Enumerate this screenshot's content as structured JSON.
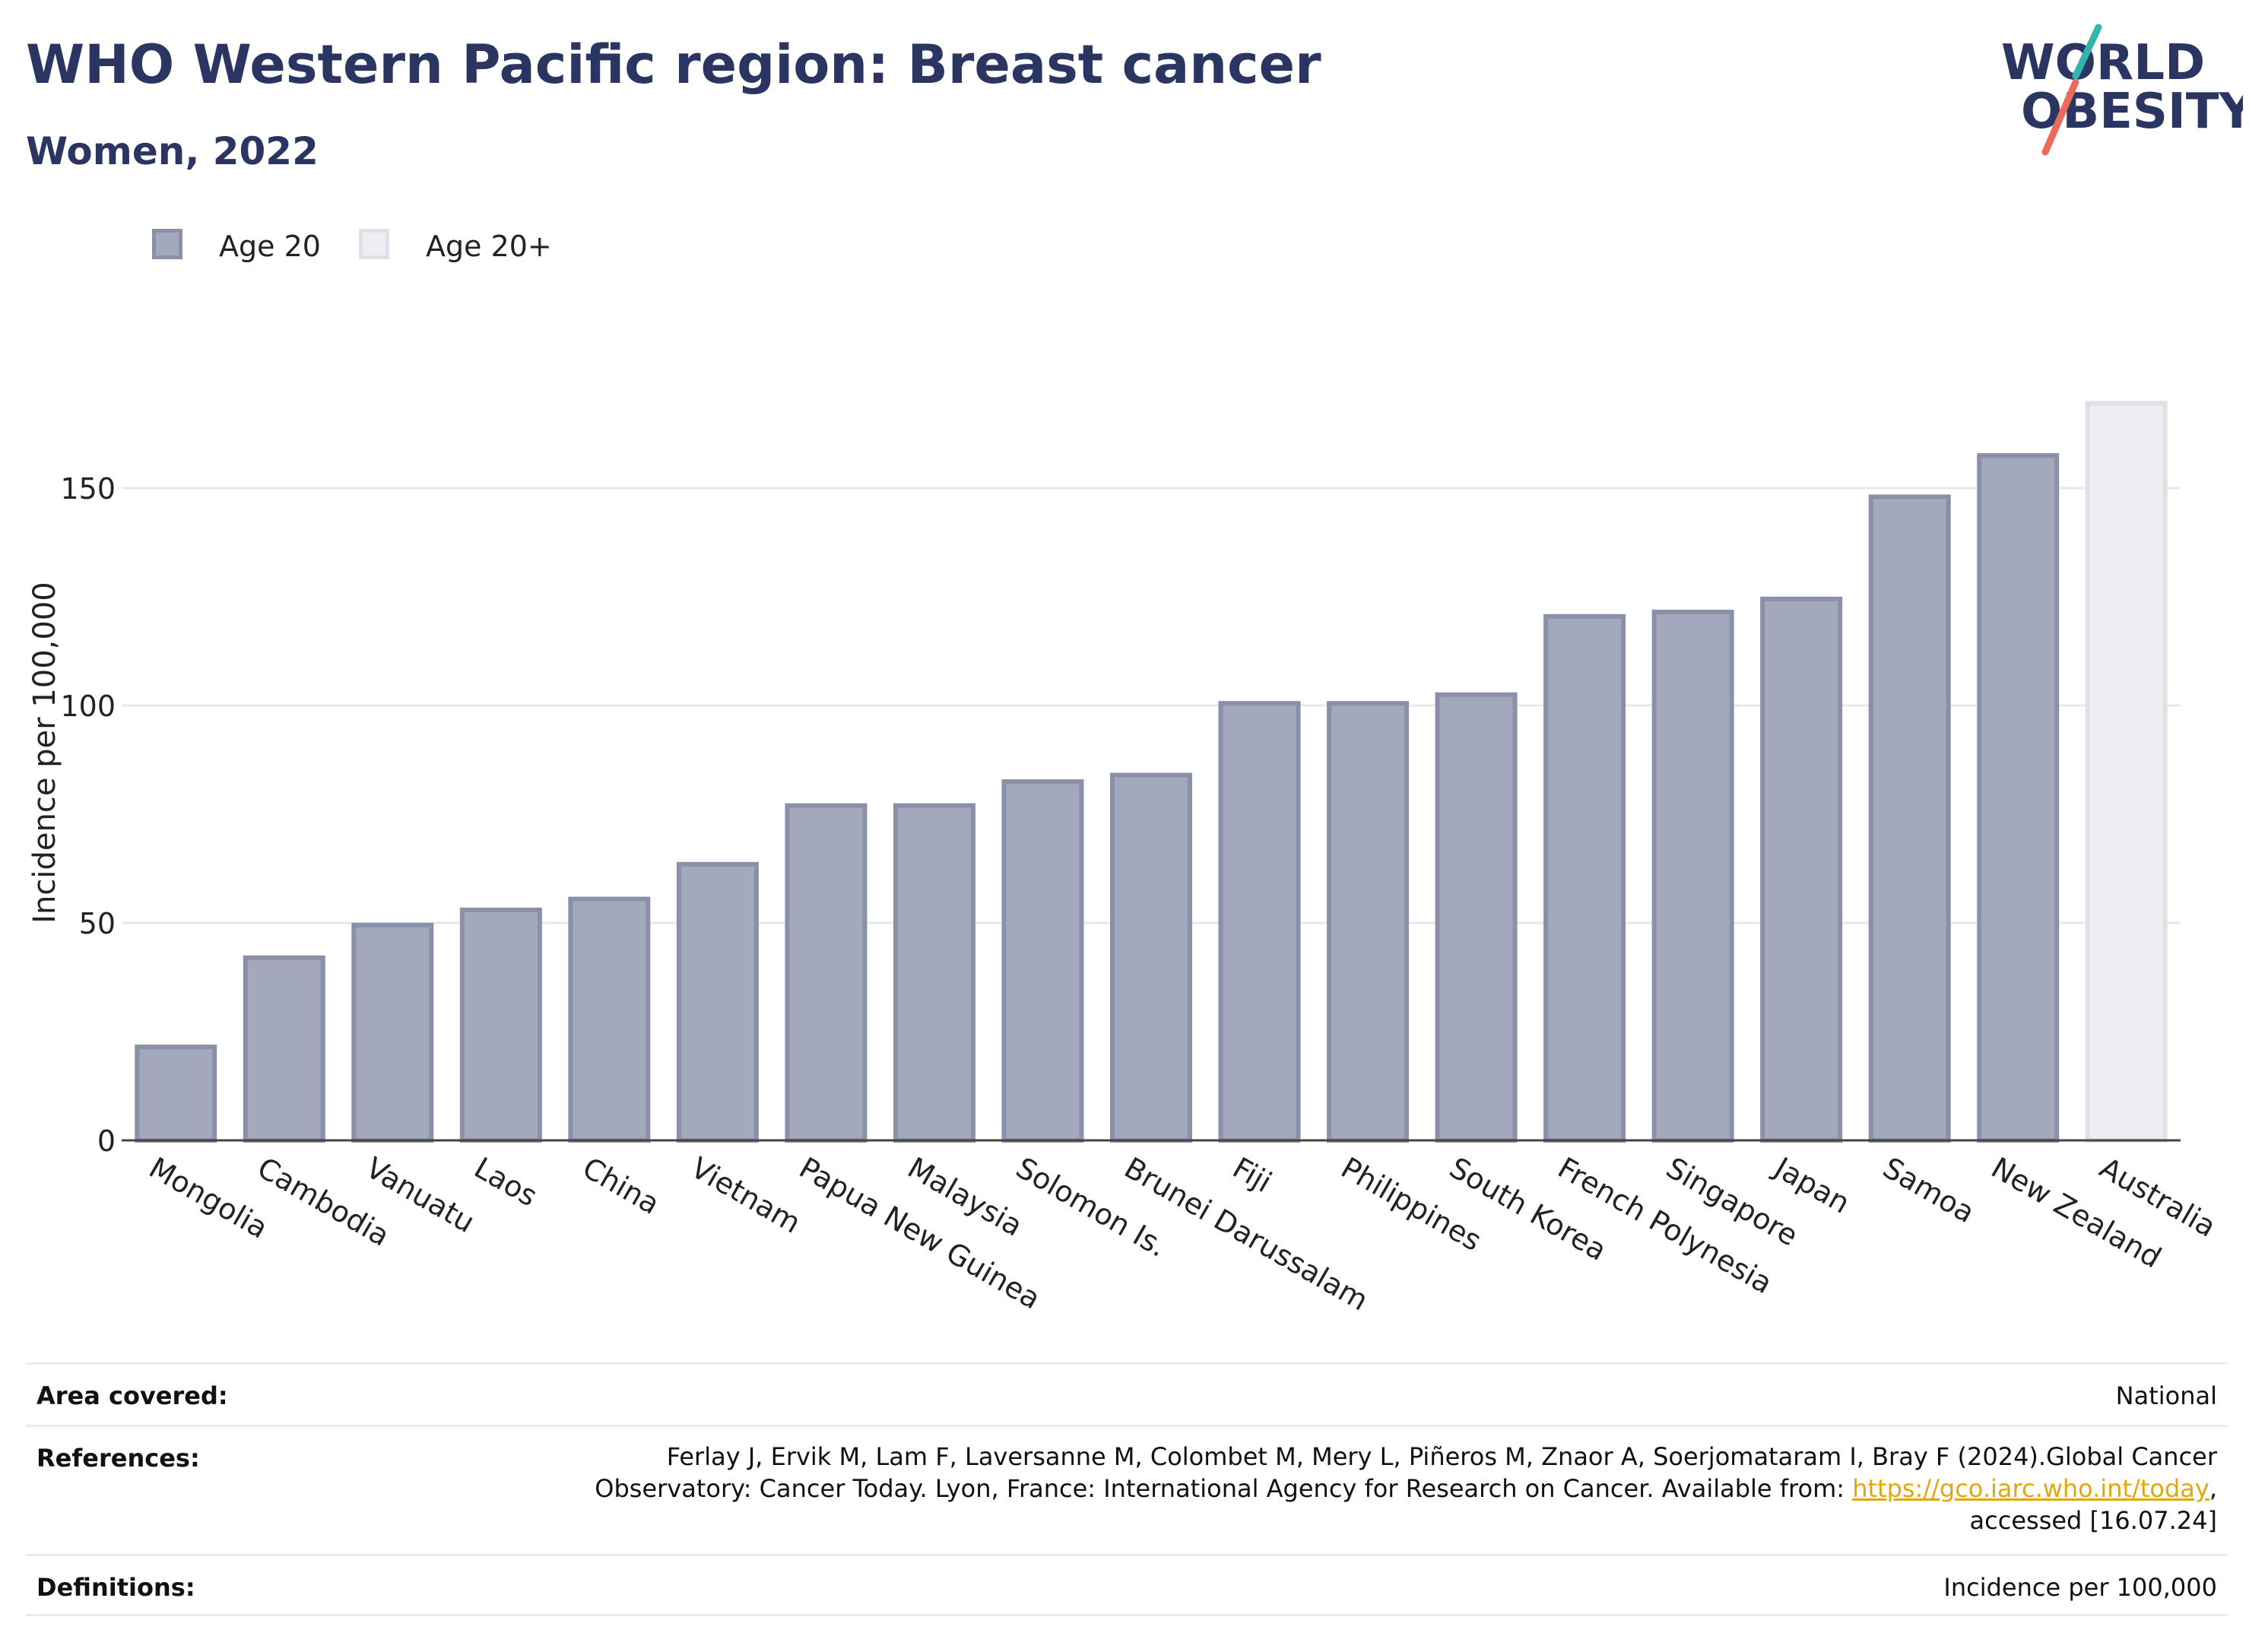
{
  "header": {
    "title": "WHO Western Pacific region: Breast cancer",
    "subtitle": "Women, 2022",
    "logo_line1": "WORLD",
    "logo_line2": "OBESITY"
  },
  "legend": [
    {
      "label": "Age 20",
      "color": "#a3a8bc",
      "border": "#8a90a8"
    },
    {
      "label": "Age 20+",
      "color": "#eceef2",
      "border": "#dfe1e8"
    }
  ],
  "chart_data": {
    "type": "bar",
    "ylabel": "Incidence per 100,000",
    "ylim": [
      0,
      175
    ],
    "yticks": [
      0,
      50,
      100,
      150
    ],
    "grid": true,
    "categories": [
      "Mongolia",
      "Cambodia",
      "Vanuatu",
      "Laos",
      "China",
      "Vietnam",
      "Papua New Guinea",
      "Malaysia",
      "Solomon Is.",
      "Brunei Darussalam",
      "Fiji",
      "Philippines",
      "South Korea",
      "French Polynesia",
      "Singapore",
      "Japan",
      "Samoa",
      "New Zealand",
      "Australia"
    ],
    "values": [
      21.5,
      42,
      49.5,
      53,
      55.5,
      63.5,
      77,
      77,
      82.5,
      84,
      100.5,
      100.5,
      102.5,
      120.5,
      121.5,
      124.5,
      148,
      157.5,
      169.5
    ],
    "series_of": [
      "Age 20",
      "Age 20",
      "Age 20",
      "Age 20",
      "Age 20",
      "Age 20",
      "Age 20",
      "Age 20",
      "Age 20",
      "Age 20",
      "Age 20",
      "Age 20",
      "Age 20",
      "Age 20",
      "Age 20",
      "Age 20",
      "Age 20",
      "Age 20",
      "Age 20+"
    ]
  },
  "info": {
    "area_key": "Area covered:",
    "area_val": "National",
    "ref_key": "References:",
    "ref_line1": "Ferlay J, Ervik M, Lam F, Laversanne M, Colombet M, Mery L, Piñeros M, Znaor A, Soerjomataram I, Bray F (2024).Global Cancer",
    "ref_line2_pre": "Observatory: Cancer Today. Lyon, France: International Agency for Research on Cancer. Available from: ",
    "ref_link": "https://gco.iarc.who.int/today",
    "ref_line2_post": ",",
    "ref_line3": "accessed [16.07.24]",
    "def_key": "Definitions:",
    "def_val": "Incidence per 100,000"
  }
}
